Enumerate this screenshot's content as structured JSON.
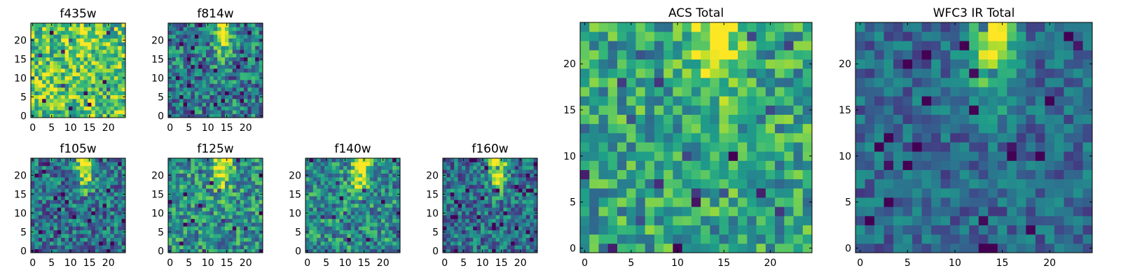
{
  "figure": {
    "colormap": "viridis",
    "colors": {
      "low": "#440154",
      "high": "#fde725",
      "frame": "#000000",
      "background": "#ffffff"
    }
  },
  "chart_data": [
    {
      "type": "heatmap",
      "title": "f435w",
      "size": 25,
      "x_ticks": [
        0,
        5,
        10,
        15,
        20
      ],
      "y_ticks": [
        0,
        5,
        10,
        15,
        20
      ],
      "xlim": [
        0,
        24
      ],
      "ylim": [
        0,
        24
      ],
      "source_peak": [
        14,
        23
      ],
      "source_strength": 0.25,
      "background_level": 0.72,
      "noise_level": 0.3,
      "seed": 11
    },
    {
      "type": "heatmap",
      "title": "f814w",
      "size": 25,
      "x_ticks": [
        0,
        5,
        10,
        15,
        20
      ],
      "y_ticks": [
        0,
        5,
        10,
        15,
        20
      ],
      "xlim": [
        0,
        24
      ],
      "ylim": [
        0,
        24
      ],
      "source_peak": [
        14,
        23
      ],
      "source_strength": 0.65,
      "background_level": 0.42,
      "noise_level": 0.3,
      "seed": 23
    },
    {
      "type": "heatmap",
      "title": "f105w",
      "size": 25,
      "x_ticks": [
        0,
        5,
        10,
        15,
        20
      ],
      "y_ticks": [
        0,
        5,
        10,
        15,
        20
      ],
      "xlim": [
        0,
        24
      ],
      "ylim": [
        0,
        24
      ],
      "source_peak": [
        14,
        23
      ],
      "source_strength": 0.7,
      "background_level": 0.38,
      "noise_level": 0.28,
      "seed": 37
    },
    {
      "type": "heatmap",
      "title": "f125w",
      "size": 25,
      "x_ticks": [
        0,
        5,
        10,
        15,
        20
      ],
      "y_ticks": [
        0,
        5,
        10,
        15,
        20
      ],
      "xlim": [
        0,
        24
      ],
      "ylim": [
        0,
        24
      ],
      "source_peak": [
        14,
        23
      ],
      "source_strength": 0.62,
      "background_level": 0.5,
      "noise_level": 0.28,
      "seed": 41
    },
    {
      "type": "heatmap",
      "title": "f140w",
      "size": 25,
      "x_ticks": [
        0,
        5,
        10,
        15,
        20
      ],
      "y_ticks": [
        0,
        5,
        10,
        15,
        20
      ],
      "xlim": [
        0,
        24
      ],
      "ylim": [
        0,
        24
      ],
      "source_peak": [
        14,
        22
      ],
      "source_strength": 0.65,
      "background_level": 0.48,
      "noise_level": 0.28,
      "seed": 53
    },
    {
      "type": "heatmap",
      "title": "f160w",
      "size": 25,
      "x_ticks": [
        0,
        5,
        10,
        15,
        20
      ],
      "y_ticks": [
        0,
        5,
        10,
        15,
        20
      ],
      "xlim": [
        0,
        24
      ],
      "ylim": [
        0,
        24
      ],
      "source_peak": [
        14,
        23
      ],
      "source_strength": 0.7,
      "background_level": 0.38,
      "noise_level": 0.26,
      "seed": 67
    },
    {
      "type": "heatmap",
      "title": "ACS Total",
      "size": 25,
      "x_ticks": [
        0,
        5,
        10,
        15,
        20
      ],
      "y_ticks": [
        0,
        5,
        10,
        15,
        20
      ],
      "xlim": [
        0,
        24
      ],
      "ylim": [
        0,
        24
      ],
      "source_peak": [
        14,
        23
      ],
      "source_strength": 0.5,
      "background_level": 0.58,
      "noise_level": 0.26,
      "seed": 79
    },
    {
      "type": "heatmap",
      "title": "WFC3 IR Total",
      "size": 25,
      "x_ticks": [
        0,
        5,
        10,
        15,
        20
      ],
      "y_ticks": [
        0,
        5,
        10,
        15,
        20
      ],
      "xlim": [
        0,
        24
      ],
      "ylim": [
        0,
        24
      ],
      "source_peak": [
        14,
        23
      ],
      "source_strength": 0.68,
      "background_level": 0.34,
      "noise_level": 0.18,
      "seed": 97
    }
  ]
}
